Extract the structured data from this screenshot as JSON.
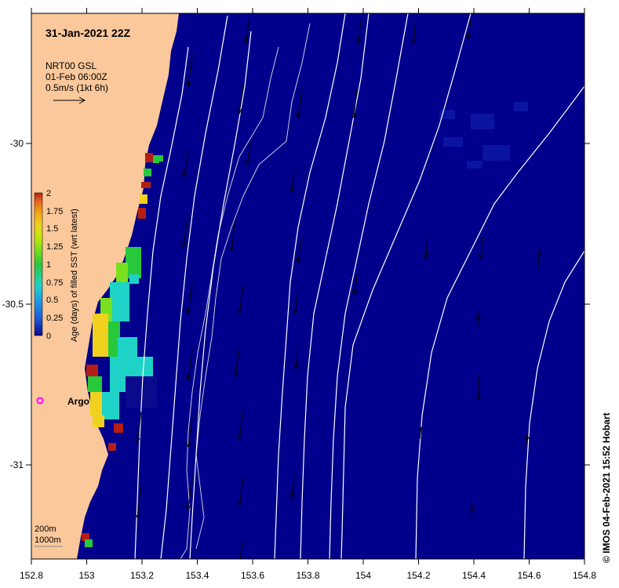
{
  "title": "31-Jan-2021 22Z",
  "product": {
    "line1": "NRT00 GSL",
    "line2": "01-Feb 06:00Z",
    "line3": "0.5m/s (1kt 6h)"
  },
  "colorbar": {
    "label": "Age (days) of filled SST (wrt latest)",
    "ticks": [
      "2",
      "1.75",
      "1.5",
      "1.25",
      "1",
      "0.75",
      "0.5",
      "0.25",
      "0"
    ],
    "colors": [
      "#0a0a8c",
      "#1e5adc",
      "#1ea0e6",
      "#1ed2c8",
      "#28c83c",
      "#78e01e",
      "#c8e60a",
      "#f0d21e",
      "#f0a014",
      "#e6641e",
      "#b41e14"
    ]
  },
  "x_axis": {
    "ticks": [
      "152.8",
      "153",
      "153.2",
      "153.4",
      "153.6",
      "153.8",
      "154",
      "154.2",
      "154.4",
      "154.6",
      "154.8"
    ],
    "range": [
      152.8,
      154.8
    ]
  },
  "y_axis": {
    "ticks": [
      "-30",
      "-30.5",
      "-31"
    ],
    "range": [
      -29.58,
      -31.31
    ]
  },
  "bathymetry_legend": {
    "line1": "200m",
    "line2": "1000m"
  },
  "argo": {
    "label": "Argo",
    "color": "#ff00ff"
  },
  "credit": "© IMOS 04-Feb-2021 15:52 Hobart",
  "colors": {
    "ocean": "#00008c",
    "land": "#fac89b",
    "contour": "#ffffff"
  }
}
